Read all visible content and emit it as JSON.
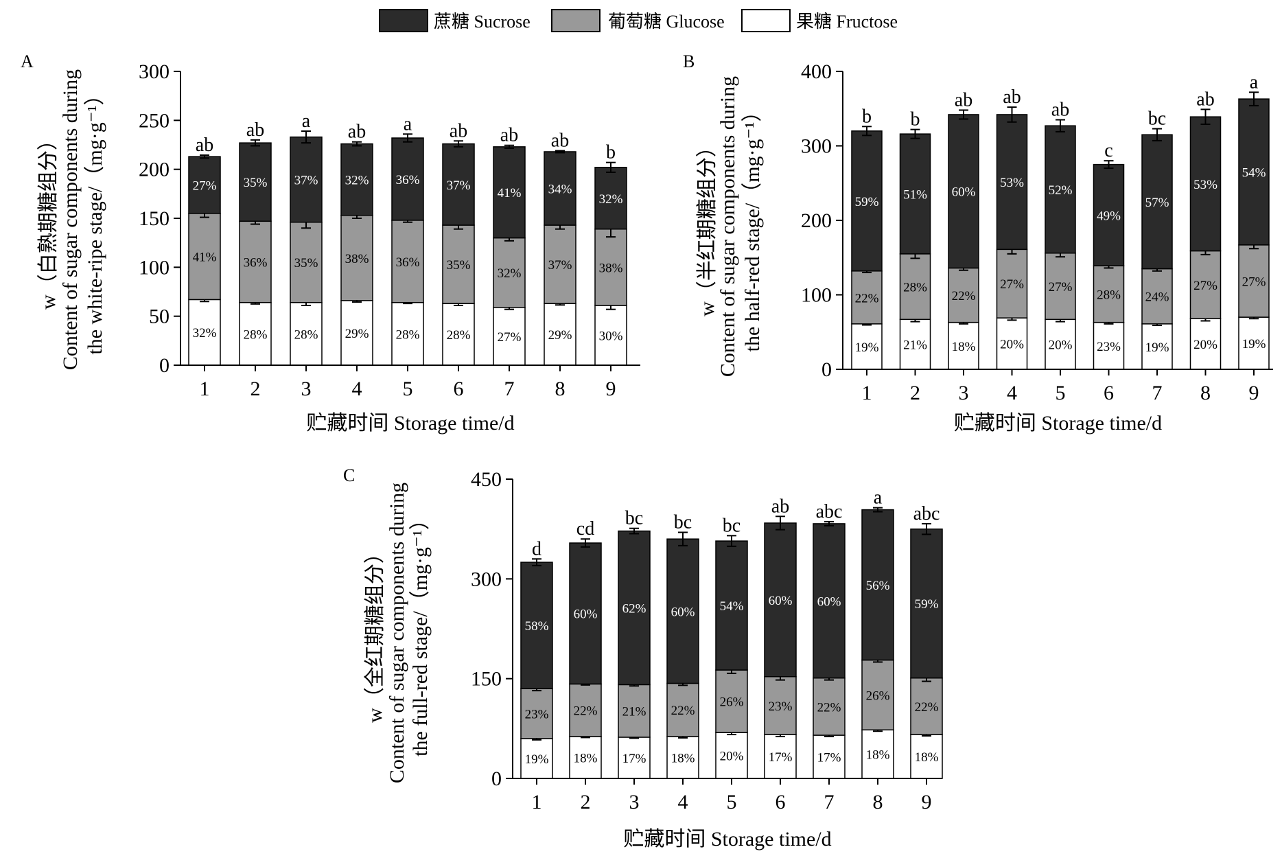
{
  "legend": [
    {
      "label": "蔗糖 Sucrose",
      "color": "#2b2b2b"
    },
    {
      "label": "葡萄糖 Glucose",
      "color": "#999999"
    },
    {
      "label": "果糖 Fructose",
      "color": "#ffffff"
    }
  ],
  "chart_data": [
    {
      "panel": "A",
      "type": "bar",
      "stacked": true,
      "title": "",
      "xlabel": "贮藏时间 Storage time/d",
      "ylabel_line1": "w（白熟期糖组分）",
      "ylabel_line2": "Content of sugar components during",
      "ylabel_line3": "the white-ripe stage/（mg·g⁻¹）",
      "ylim": [
        0,
        300
      ],
      "yticks": [
        0,
        50,
        100,
        150,
        200,
        250,
        300
      ],
      "categories": [
        "1",
        "2",
        "3",
        "4",
        "5",
        "6",
        "7",
        "8",
        "9"
      ],
      "series": [
        {
          "name": "果糖 Fructose",
          "values": [
            67,
            64,
            64,
            66,
            64,
            63,
            59,
            63,
            61
          ],
          "errors": [
            2,
            1.5,
            3,
            1.5,
            1,
            2,
            2,
            1.5,
            4
          ],
          "percent_labels": [
            "32%",
            "28%",
            "28%",
            "29%",
            "28%",
            "28%",
            "27%",
            "29%",
            "30%"
          ]
        },
        {
          "name": "葡萄糖 Glucose",
          "values": [
            88,
            83,
            82,
            87,
            84,
            80,
            71,
            80,
            78
          ],
          "errors": [
            4,
            3,
            6,
            3,
            2,
            4,
            3,
            4,
            8
          ],
          "percent_labels": [
            "41%",
            "36%",
            "35%",
            "38%",
            "36%",
            "35%",
            "32%",
            "37%",
            "38%"
          ]
        },
        {
          "name": "蔗糖 Sucrose",
          "values": [
            58,
            80,
            87,
            73,
            84,
            83,
            93,
            75,
            63
          ],
          "errors": [
            1.5,
            3,
            6,
            2,
            4,
            3,
            1.5,
            1,
            5
          ],
          "percent_labels": [
            "27%",
            "35%",
            "37%",
            "32%",
            "36%",
            "37%",
            "41%",
            "34%",
            "32%"
          ]
        }
      ],
      "significance": [
        "ab",
        "ab",
        "a",
        "ab",
        "a",
        "ab",
        "ab",
        "ab",
        "b"
      ]
    },
    {
      "panel": "B",
      "type": "bar",
      "stacked": true,
      "title": "",
      "xlabel": "贮藏时间 Storage time/d",
      "ylabel_line1": "w（半红期糖组分）",
      "ylabel_line2": "Content of sugar components during",
      "ylabel_line3": "the half-red stage/（mg·g⁻¹）",
      "ylim": [
        0,
        400
      ],
      "yticks": [
        0,
        100,
        200,
        300,
        400
      ],
      "categories": [
        "1",
        "2",
        "3",
        "4",
        "5",
        "6",
        "7",
        "8",
        "9"
      ],
      "series": [
        {
          "name": "果糖 Fructose",
          "values": [
            61,
            67,
            63,
            69,
            67,
            63,
            61,
            68,
            70
          ],
          "errors": [
            1.5,
            3,
            2,
            3,
            3,
            2,
            2,
            3,
            2
          ],
          "percent_labels": [
            "19%",
            "21%",
            "18%",
            "20%",
            "20%",
            "23%",
            "19%",
            "20%",
            "19%"
          ]
        },
        {
          "name": "葡萄糖 Glucose",
          "values": [
            71,
            88,
            73,
            92,
            89,
            76,
            74,
            91,
            97
          ],
          "errors": [
            2,
            6,
            3,
            6,
            5,
            3,
            3,
            5,
            5
          ],
          "percent_labels": [
            "22%",
            "28%",
            "22%",
            "27%",
            "27%",
            "28%",
            "24%",
            "27%",
            "27%"
          ]
        },
        {
          "name": "蔗糖 Sucrose",
          "values": [
            188,
            161,
            206,
            181,
            171,
            136,
            180,
            180,
            196
          ],
          "errors": [
            6,
            6,
            6,
            10,
            8,
            5,
            8,
            10,
            9
          ],
          "percent_labels": [
            "59%",
            "51%",
            "60%",
            "53%",
            "52%",
            "49%",
            "57%",
            "53%",
            "54%"
          ]
        }
      ],
      "significance": [
        "b",
        "b",
        "ab",
        "ab",
        "ab",
        "c",
        "bc",
        "ab",
        "a"
      ]
    },
    {
      "panel": "C",
      "type": "bar",
      "stacked": true,
      "title": "",
      "xlabel": "贮藏时间 Storage time/d",
      "ylabel_line1": "w（全红期糖组分）",
      "ylabel_line2": "Content of sugar components during",
      "ylabel_line3": "the full-red stage/（mg·g⁻¹）",
      "ylim": [
        0,
        450
      ],
      "yticks": [
        0,
        150,
        300,
        450
      ],
      "categories": [
        "1",
        "2",
        "3",
        "4",
        "5",
        "6",
        "7",
        "8",
        "9"
      ],
      "series": [
        {
          "name": "果糖 Fructose",
          "values": [
            60,
            63,
            62,
            63,
            69,
            66,
            65,
            73,
            66
          ],
          "errors": [
            2,
            1.5,
            1.5,
            2,
            3,
            3,
            2,
            2,
            2
          ],
          "percent_labels": [
            "19%",
            "18%",
            "17%",
            "18%",
            "20%",
            "17%",
            "17%",
            "18%",
            "18%"
          ]
        },
        {
          "name": "葡萄糖 Glucose",
          "values": [
            75,
            79,
            79,
            80,
            94,
            87,
            86,
            105,
            85
          ],
          "errors": [
            3,
            1.5,
            2,
            3,
            5,
            5,
            3,
            3,
            5
          ],
          "percent_labels": [
            "23%",
            "22%",
            "21%",
            "22%",
            "26%",
            "23%",
            "22%",
            "26%",
            "22%"
          ]
        },
        {
          "name": "蔗糖 Sucrose",
          "values": [
            190,
            212,
            231,
            217,
            194,
            231,
            232,
            226,
            224
          ],
          "errors": [
            5,
            6,
            4,
            10,
            8,
            10,
            3,
            3,
            8
          ],
          "percent_labels": [
            "58%",
            "60%",
            "62%",
            "60%",
            "54%",
            "60%",
            "60%",
            "56%",
            "59%"
          ]
        }
      ],
      "significance": [
        "d",
        "cd",
        "bc",
        "bc",
        "bc",
        "ab",
        "abc",
        "a",
        "abc"
      ]
    }
  ]
}
